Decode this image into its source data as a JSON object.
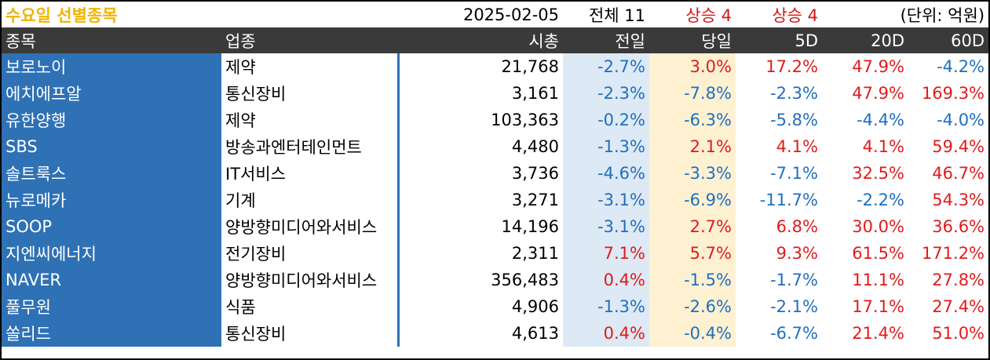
{
  "header": {
    "title": "수요일 선별종목",
    "date": "2025-02-05",
    "total": "전체 11",
    "rise1": "상승 4",
    "rise2": "상승 4",
    "unit": "(단위: 억원)"
  },
  "columns": [
    "종목",
    "업종",
    "시총",
    "전일",
    "당일",
    "5D",
    "20D",
    "60D"
  ],
  "colors": {
    "up": "#e01b1b",
    "down": "#1f6fbf",
    "name_bg": "#2e71b5",
    "title": "#f0b400"
  },
  "rows": [
    {
      "name": "보로노이",
      "industry": "제약",
      "cap": "21,768",
      "prev": "-2.7%",
      "today": "3.0%",
      "d5": "17.2%",
      "d20": "47.9%",
      "d60": "-4.2%"
    },
    {
      "name": "에치에프알",
      "industry": "통신장비",
      "cap": "3,161",
      "prev": "-2.3%",
      "today": "-7.8%",
      "d5": "-2.3%",
      "d20": "47.9%",
      "d60": "169.3%"
    },
    {
      "name": "유한양행",
      "industry": "제약",
      "cap": "103,363",
      "prev": "-0.2%",
      "today": "-6.3%",
      "d5": "-5.8%",
      "d20": "-4.4%",
      "d60": "-4.0%"
    },
    {
      "name": "SBS",
      "industry": "방송과엔터테인먼트",
      "cap": "4,480",
      "prev": "-1.3%",
      "today": "2.1%",
      "d5": "4.1%",
      "d20": "4.1%",
      "d60": "59.4%"
    },
    {
      "name": "솔트룩스",
      "industry": "IT서비스",
      "cap": "3,736",
      "prev": "-4.6%",
      "today": "-3.3%",
      "d5": "-7.1%",
      "d20": "32.5%",
      "d60": "46.7%"
    },
    {
      "name": "뉴로메카",
      "industry": "기계",
      "cap": "3,271",
      "prev": "-3.1%",
      "today": "-6.9%",
      "d5": "-11.7%",
      "d20": "-2.2%",
      "d60": "54.3%"
    },
    {
      "name": "SOOP",
      "industry": "양방향미디어와서비스",
      "cap": "14,196",
      "prev": "-3.1%",
      "today": "2.7%",
      "d5": "6.8%",
      "d20": "30.0%",
      "d60": "36.6%"
    },
    {
      "name": "지엔씨에너지",
      "industry": "전기장비",
      "cap": "2,311",
      "prev": "7.1%",
      "today": "5.7%",
      "d5": "9.3%",
      "d20": "61.5%",
      "d60": "171.2%"
    },
    {
      "name": "NAVER",
      "industry": "양방향미디어와서비스",
      "cap": "356,483",
      "prev": "0.4%",
      "today": "-1.5%",
      "d5": "-1.7%",
      "d20": "11.1%",
      "d60": "27.8%"
    },
    {
      "name": "풀무원",
      "industry": "식품",
      "cap": "4,906",
      "prev": "-1.3%",
      "today": "-2.6%",
      "d5": "-2.1%",
      "d20": "17.1%",
      "d60": "27.4%"
    },
    {
      "name": "쏠리드",
      "industry": "통신장비",
      "cap": "4,613",
      "prev": "0.4%",
      "today": "-0.4%",
      "d5": "-6.7%",
      "d20": "21.4%",
      "d60": "51.0%"
    }
  ]
}
